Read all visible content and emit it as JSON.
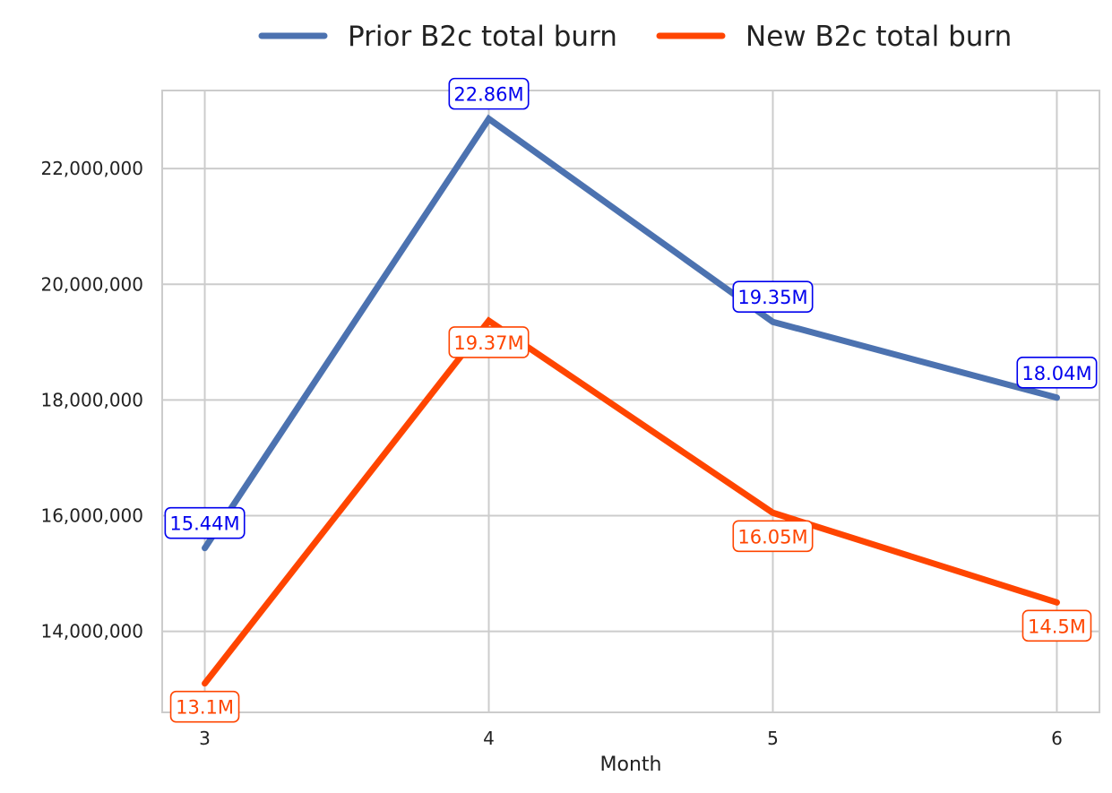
{
  "chart_data": {
    "type": "line",
    "title": "",
    "xlabel": "Month",
    "ylabel": "",
    "x": [
      3,
      4,
      5,
      6
    ],
    "x_tick_labels": [
      "3",
      "4",
      "5",
      "6"
    ],
    "ylim": [
      12600000,
      23350000
    ],
    "y_ticks": [
      14000000,
      16000000,
      18000000,
      20000000,
      22000000
    ],
    "y_tick_labels": [
      "14,000,000",
      "16,000,000",
      "18,000,000",
      "20,000,000",
      "22,000,000"
    ],
    "grid": true,
    "legend_position": "top-center",
    "series": [
      {
        "name": "Prior B2c total burn",
        "color": "#4C72B0",
        "label_color": "#0000EE",
        "values": [
          15440000,
          22860000,
          19350000,
          18040000
        ],
        "point_labels": [
          "15.44M",
          "22.86M",
          "19.35M",
          "18.04M"
        ]
      },
      {
        "name": "New B2c total burn",
        "color": "#FF4500",
        "label_color": "#FF4500",
        "values": [
          13100000,
          19370000,
          16050000,
          14500000
        ],
        "point_labels": [
          "13.1M",
          "19.37M",
          "16.05M",
          "14.5M"
        ]
      }
    ]
  }
}
